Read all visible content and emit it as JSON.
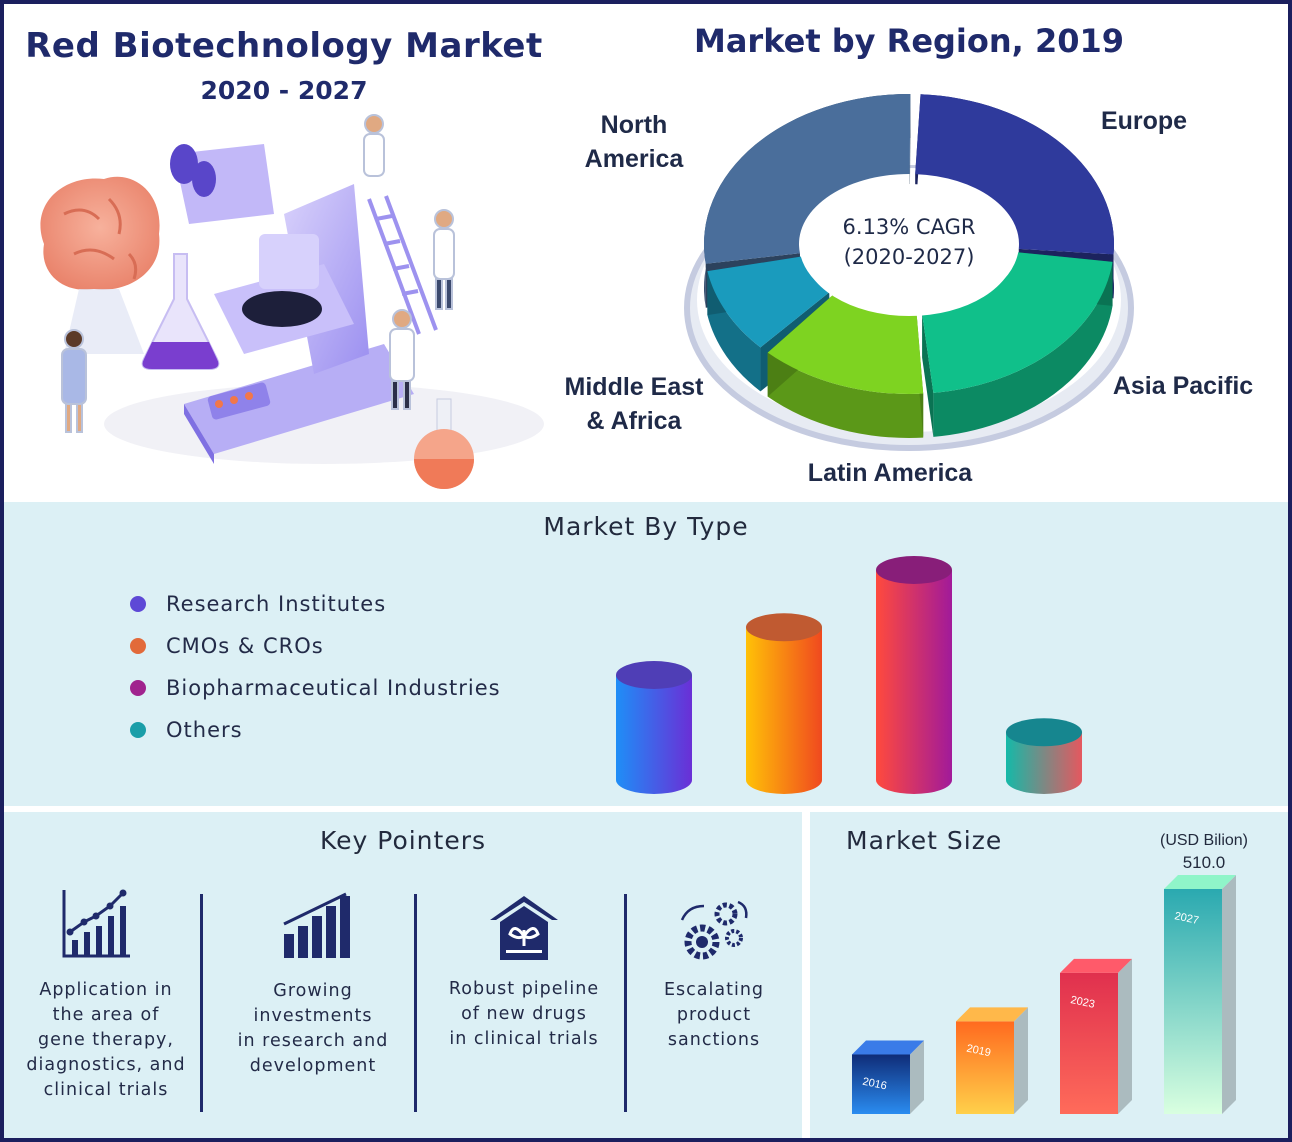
{
  "header": {
    "title": "Red Biotechnology Market",
    "years": "2020 - 2027"
  },
  "region": {
    "title": "Market by Region, 2019",
    "cagr_line1": "6.13% CAGR",
    "cagr_line2": "(2020-2027)",
    "labels": {
      "north_america_1": "North",
      "north_america_2": "America",
      "europe": "Europe",
      "asia_pacific": "Asia Pacific",
      "latin_america": "Latin America",
      "mea_1": "Middle East",
      "mea_2": "& Africa"
    },
    "colors": {
      "north_america": "#4a6e9b",
      "europe": "#2f3a9c",
      "asia_pacific": "#10c08a",
      "latin_america": "#7ed321",
      "mea": "#1a9bbd"
    }
  },
  "type": {
    "title": "Market By Type",
    "legend": [
      {
        "label": "Research Institutes",
        "color": "#5d49d6"
      },
      {
        "label": "CMOs & CROs",
        "color": "#e26a3a"
      },
      {
        "label": "Biopharmaceutical Industries",
        "color": "#a0238e"
      },
      {
        "label": "Others",
        "color": "#1a9ea8"
      }
    ]
  },
  "key_pointers": {
    "title": "Key Pointers",
    "items": [
      {
        "icon": "rising-chart-icon",
        "lines": [
          "Application in",
          "the area of",
          "gene therapy,",
          "diagnostics, and",
          "clinical trials"
        ]
      },
      {
        "icon": "bar-growth-icon",
        "lines": [
          "Growing",
          "investments",
          "in research and",
          "development"
        ]
      },
      {
        "icon": "house-plant-icon",
        "lines": [
          "Robust pipeline",
          "of new drugs",
          "in clinical trials"
        ]
      },
      {
        "icon": "gears-icon",
        "lines": [
          "Escalating",
          "product",
          "sanctions"
        ]
      }
    ]
  },
  "market_size": {
    "title": "Market Size",
    "unit": "(USD Bilion)",
    "last_value": "510.0"
  },
  "chart_data": [
    {
      "type": "pie",
      "title": "Market by Region, 2019",
      "categories": [
        "North America",
        "Europe",
        "Asia Pacific",
        "Latin America",
        "Middle East & Africa"
      ],
      "values": [
        28,
        26,
        22,
        14,
        10
      ]
    },
    {
      "type": "bar",
      "title": "Market By Type",
      "categories": [
        "Research Institutes",
        "CMOs & CROs",
        "Biopharmaceutical Industries",
        "Others"
      ],
      "values": [
        110,
        160,
        220,
        50
      ]
    },
    {
      "type": "bar",
      "title": "Market Size",
      "ylabel": "(USD Bilion)",
      "categories": [
        "2016",
        "2019",
        "2023",
        "2027"
      ],
      "values": [
        135,
        210,
        320,
        510.0
      ]
    }
  ]
}
